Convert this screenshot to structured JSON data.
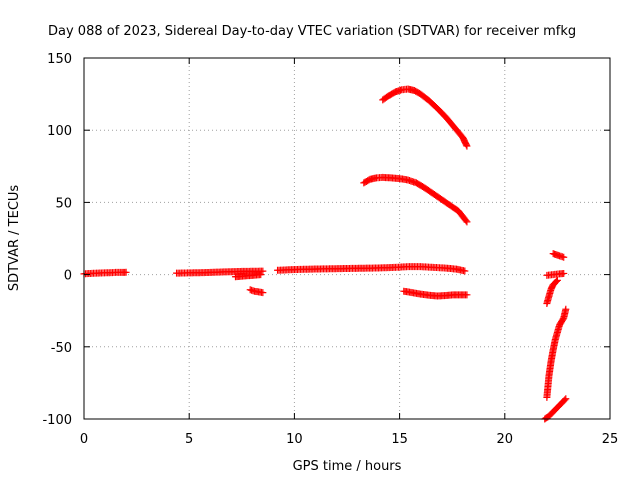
{
  "chart_data": {
    "type": "scatter",
    "title": "Day 088 of 2023, Sidereal Day-to-day VTEC variation (SDTVAR) for receiver mfkg",
    "xlabel": "GPS time / hours",
    "ylabel": "SDTVAR / TECUs",
    "xlim": [
      0,
      25
    ],
    "ylim": [
      -100,
      150
    ],
    "xticks": [
      0,
      5,
      10,
      15,
      20,
      25
    ],
    "xtick_labels": [
      "0",
      "5",
      "10",
      "15",
      "20",
      "25"
    ],
    "yticks": [
      -100,
      -50,
      0,
      50,
      100,
      150
    ],
    "ytick_labels": [
      "-100",
      "-50",
      "0",
      "50",
      "100",
      "150"
    ],
    "grid": true,
    "marker": "+",
    "color": "#ff0000",
    "series": [
      {
        "name": "segment-1",
        "points": [
          [
            0.0,
            0.5
          ],
          [
            0.3,
            0.8
          ],
          [
            0.6,
            1.0
          ],
          [
            0.9,
            1.2
          ],
          [
            1.2,
            1.3
          ],
          [
            1.5,
            1.5
          ],
          [
            1.8,
            1.5
          ],
          [
            2.0,
            1.6
          ]
        ]
      },
      {
        "name": "segment-2",
        "points": [
          [
            4.4,
            1.0
          ],
          [
            5.0,
            1.2
          ],
          [
            5.5,
            1.3
          ],
          [
            6.0,
            1.5
          ],
          [
            6.5,
            1.8
          ],
          [
            7.0,
            2.0
          ],
          [
            7.5,
            2.2
          ],
          [
            8.0,
            2.3
          ],
          [
            8.5,
            2.4
          ]
        ]
      },
      {
        "name": "segment-3",
        "points": [
          [
            7.2,
            -1.5
          ],
          [
            7.6,
            -1.0
          ],
          [
            8.0,
            -0.5
          ],
          [
            8.4,
            0.0
          ]
        ]
      },
      {
        "name": "segment-4",
        "points": [
          [
            7.9,
            -10.5
          ],
          [
            8.1,
            -11.5
          ],
          [
            8.3,
            -12.0
          ],
          [
            8.5,
            -12.5
          ]
        ]
      },
      {
        "name": "segment-5",
        "points": [
          [
            9.2,
            3.0
          ],
          [
            10.0,
            3.5
          ],
          [
            10.8,
            3.8
          ],
          [
            11.6,
            4.0
          ],
          [
            12.4,
            4.2
          ],
          [
            13.2,
            4.4
          ],
          [
            14.0,
            4.6
          ],
          [
            14.8,
            5.0
          ],
          [
            15.4,
            5.5
          ],
          [
            16.0,
            5.5
          ],
          [
            16.6,
            5.0
          ],
          [
            17.2,
            4.5
          ],
          [
            17.7,
            3.8
          ],
          [
            18.1,
            2.5
          ]
        ]
      },
      {
        "name": "segment-6",
        "points": [
          [
            15.2,
            -11.5
          ],
          [
            15.6,
            -12.5
          ],
          [
            16.0,
            -13.5
          ],
          [
            16.4,
            -14.3
          ],
          [
            16.8,
            -14.8
          ],
          [
            17.2,
            -14.5
          ],
          [
            17.6,
            -14.0
          ],
          [
            18.0,
            -14.0
          ],
          [
            18.2,
            -14.0
          ]
        ]
      },
      {
        "name": "segment-7",
        "points": [
          [
            13.3,
            63.5
          ],
          [
            13.6,
            66.0
          ],
          [
            13.9,
            67.0
          ],
          [
            14.2,
            67.3
          ],
          [
            14.6,
            67.0
          ],
          [
            15.0,
            66.5
          ],
          [
            15.4,
            65.5
          ],
          [
            15.8,
            63.5
          ],
          [
            16.2,
            60.0
          ],
          [
            16.6,
            56.0
          ],
          [
            17.0,
            52.0
          ],
          [
            17.4,
            48.0
          ],
          [
            17.8,
            44.0
          ],
          [
            18.2,
            36.5
          ]
        ]
      },
      {
        "name": "segment-8",
        "points": [
          [
            14.2,
            121.0
          ],
          [
            14.5,
            124.0
          ],
          [
            14.8,
            126.5
          ],
          [
            15.1,
            128.0
          ],
          [
            15.4,
            128.5
          ],
          [
            15.7,
            127.5
          ],
          [
            16.0,
            125.0
          ],
          [
            16.4,
            120.5
          ],
          [
            16.8,
            115.0
          ],
          [
            17.2,
            109.0
          ],
          [
            17.6,
            102.0
          ],
          [
            18.0,
            95.0
          ],
          [
            18.2,
            89.0
          ]
        ]
      },
      {
        "name": "segment-9",
        "points": [
          [
            22.3,
            14.5
          ],
          [
            22.6,
            13.0
          ],
          [
            22.8,
            12.0
          ]
        ]
      },
      {
        "name": "segment-10",
        "points": [
          [
            22.0,
            -0.5
          ],
          [
            22.3,
            0.0
          ],
          [
            22.6,
            0.5
          ],
          [
            22.8,
            0.8
          ]
        ]
      },
      {
        "name": "segment-11",
        "points": [
          [
            22.0,
            -20.0
          ],
          [
            22.1,
            -15.0
          ],
          [
            22.2,
            -10.0
          ],
          [
            22.3,
            -7.0
          ],
          [
            22.5,
            -4.0
          ]
        ]
      },
      {
        "name": "segment-12",
        "points": [
          [
            22.0,
            -85.0
          ],
          [
            22.1,
            -70.0
          ],
          [
            22.2,
            -60.0
          ],
          [
            22.3,
            -52.0
          ],
          [
            22.4,
            -45.0
          ],
          [
            22.5,
            -40.0
          ],
          [
            22.6,
            -35.0
          ],
          [
            22.8,
            -30.0
          ],
          [
            22.9,
            -24.0
          ]
        ]
      },
      {
        "name": "segment-13",
        "points": [
          [
            21.9,
            -100.0
          ],
          [
            22.1,
            -98.0
          ],
          [
            22.3,
            -95.0
          ],
          [
            22.5,
            -92.0
          ],
          [
            22.7,
            -89.0
          ],
          [
            22.9,
            -86.0
          ]
        ]
      }
    ]
  }
}
